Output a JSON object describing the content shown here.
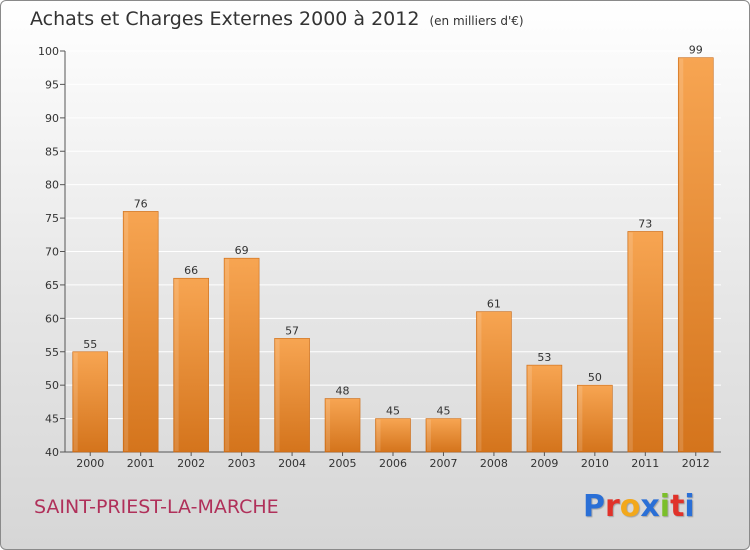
{
  "title": "Achats et Charges Externes 2000 à 2012",
  "unit_label": "(en milliers d'€)",
  "commune": "SAINT-PRIEST-LA-MARCHE",
  "logo_text": "Proxiti",
  "logo_colors": [
    "#2a6fd6",
    "#e0322a",
    "#f2a81c",
    "#2a6fd6",
    "#7bbf2a",
    "#e0322a",
    "#2a6fd6"
  ],
  "colors": {
    "bar_light": "#f7a552",
    "bar_dark": "#d4741c",
    "title": "#333333",
    "commune": "#b0305a"
  },
  "chart_data": {
    "type": "bar",
    "categories": [
      "2000",
      "2001",
      "2002",
      "2003",
      "2004",
      "2005",
      "2006",
      "2007",
      "2008",
      "2009",
      "2010",
      "2011",
      "2012"
    ],
    "values": [
      55,
      76,
      66,
      69,
      57,
      48,
      45,
      45,
      61,
      53,
      50,
      73,
      99
    ],
    "ylim": [
      40,
      100
    ],
    "yticks": [
      40,
      45,
      50,
      55,
      60,
      65,
      70,
      75,
      80,
      85,
      90,
      95,
      100
    ],
    "grid": true,
    "xlabel": "",
    "ylabel": ""
  }
}
